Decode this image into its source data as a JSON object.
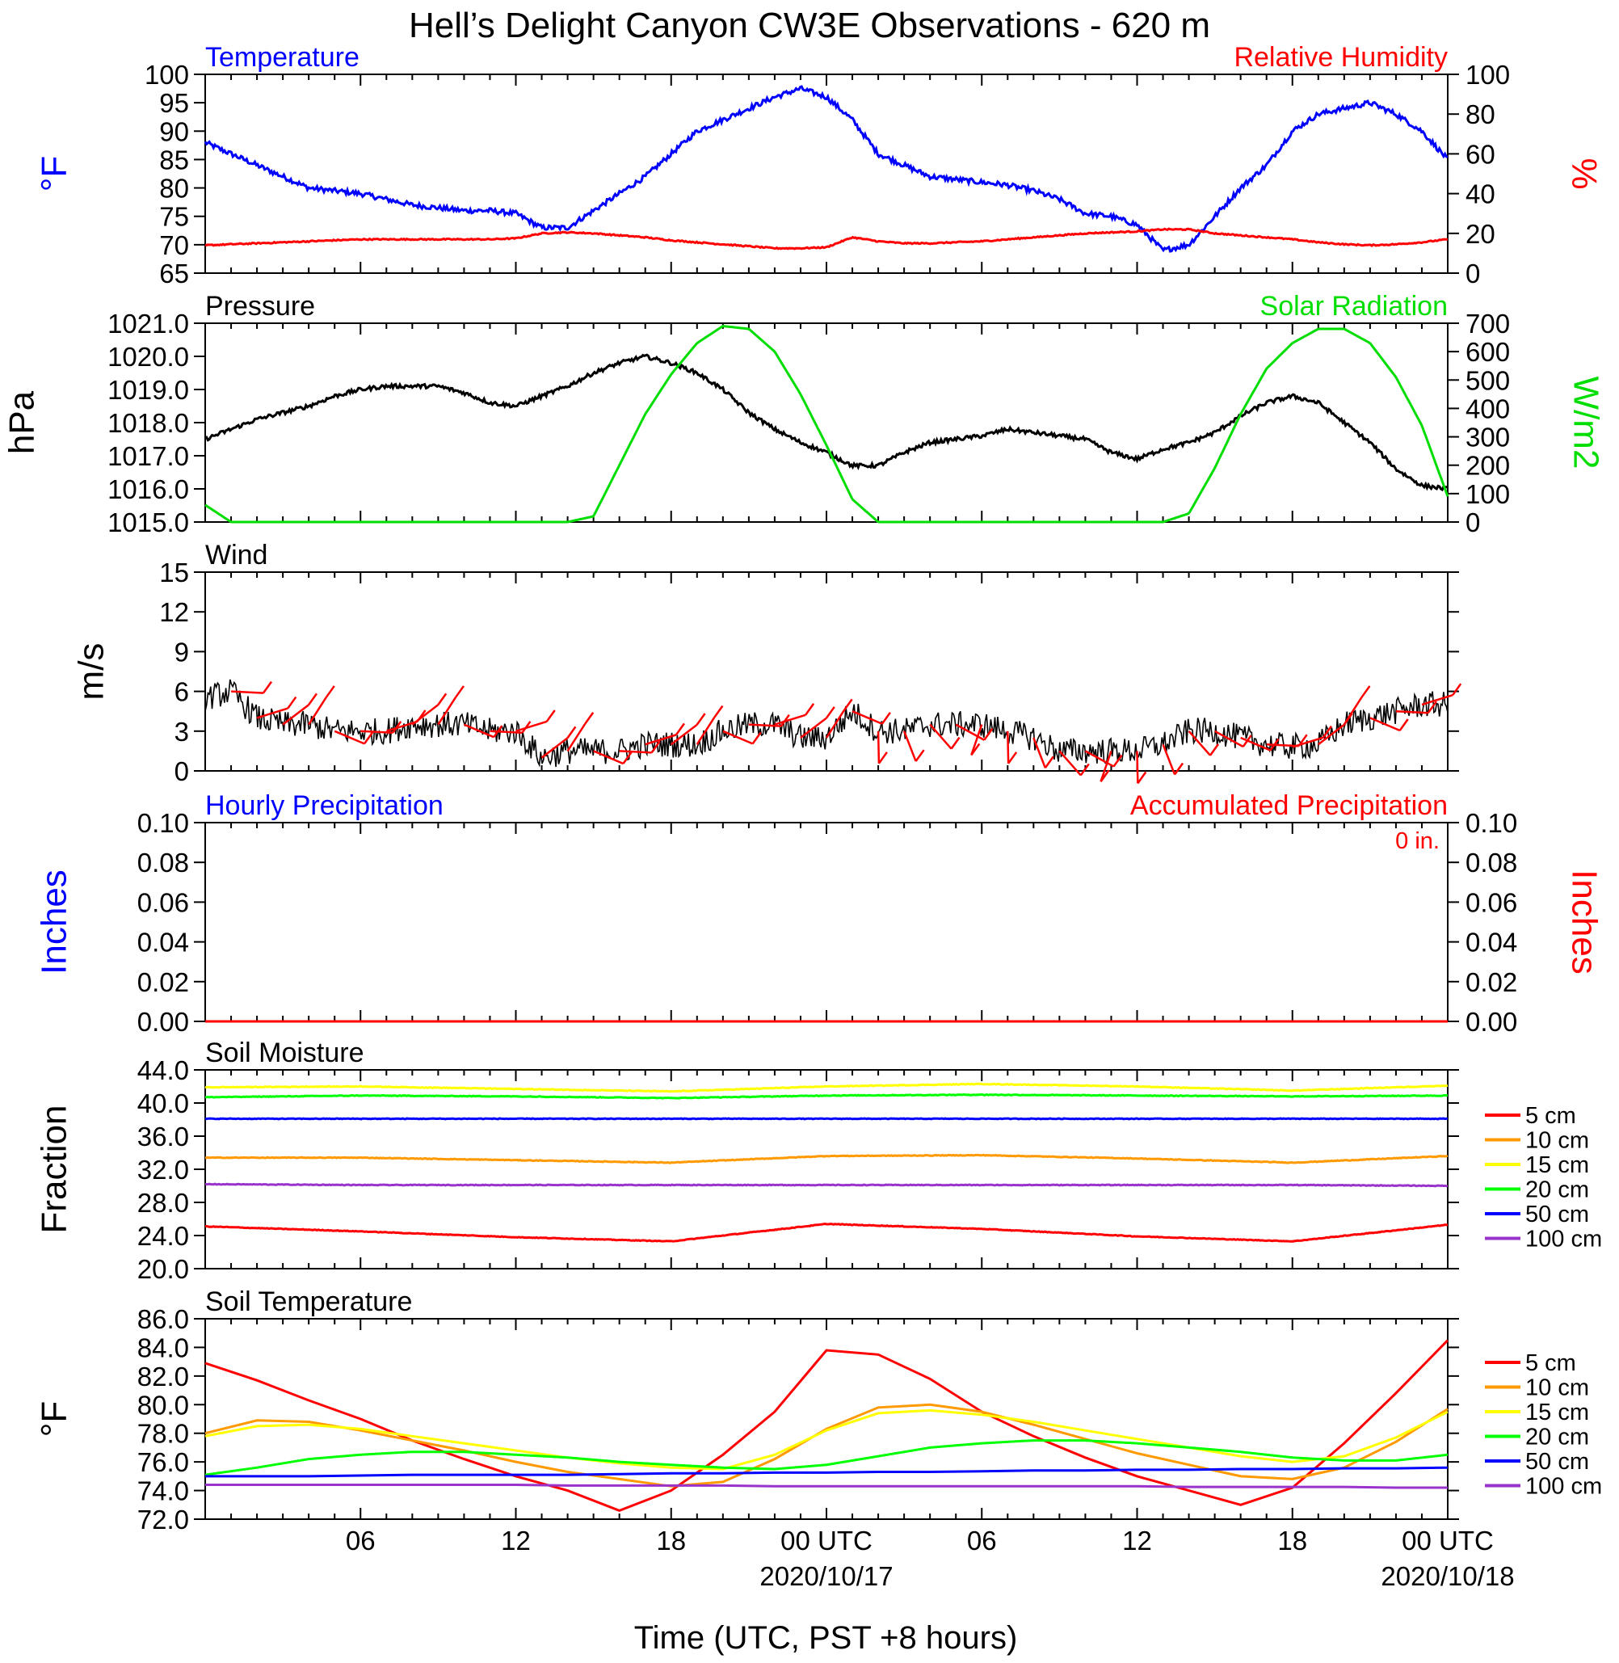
{
  "title": "Hell’s Delight Canyon CW3E Observations - 620 m",
  "xlabel": "Time (UTC, PST +8 hours)",
  "x_ticks": [
    {
      "t": 6,
      "label": "06",
      "date": ""
    },
    {
      "t": 12,
      "label": "12",
      "date": ""
    },
    {
      "t": 18,
      "label": "18",
      "date": ""
    },
    {
      "t": 24,
      "label": "00 UTC",
      "date": "2020/10/17"
    },
    {
      "t": 30,
      "label": "06",
      "date": ""
    },
    {
      "t": 36,
      "label": "12",
      "date": ""
    },
    {
      "t": 42,
      "label": "18",
      "date": ""
    },
    {
      "t": 48,
      "label": "00 UTC",
      "date": "2020/10/18"
    }
  ],
  "chart_data": [
    {
      "type": "line",
      "title_left": "Temperature",
      "title_right": "Relative Humidity",
      "ylabel_left": "°F",
      "ylabel_right": "%",
      "ylim_left": [
        65,
        100
      ],
      "ylim_right": [
        0,
        100
      ],
      "yticks_left": [
        "65",
        "70",
        "75",
        "80",
        "85",
        "90",
        "95",
        "100"
      ],
      "yticks_right": [
        "0",
        "20",
        "40",
        "60",
        "80",
        "100"
      ],
      "colors": {
        "left": "#0000ff",
        "right": "#ff0000"
      },
      "x_hours": [
        0,
        1,
        2,
        3,
        4,
        5,
        6,
        7,
        8,
        9,
        10,
        11,
        12,
        13,
        14,
        15,
        16,
        17,
        18,
        19,
        20,
        21,
        22,
        23,
        24,
        25,
        26,
        27,
        28,
        29,
        30,
        31,
        32,
        33,
        34,
        35,
        36,
        37,
        38,
        39,
        40,
        41,
        42,
        43,
        44,
        45,
        46,
        47,
        48
      ],
      "series": [
        {
          "axis": "left",
          "values": [
            88,
            86,
            84,
            82,
            80,
            79.5,
            79,
            78,
            77,
            76.5,
            76,
            76,
            75.5,
            73,
            73,
            76,
            79,
            82,
            86,
            90,
            92,
            94,
            96,
            97.5,
            96,
            92,
            86,
            84,
            82,
            81.5,
            81,
            80.5,
            79.5,
            78,
            75.5,
            75,
            73.5,
            69,
            70,
            75,
            80,
            84,
            90,
            93,
            94,
            95,
            93,
            90,
            85
          ]
        },
        {
          "axis": "right",
          "values": [
            14,
            14.5,
            15,
            15.5,
            16,
            16.5,
            17,
            17,
            17,
            17,
            17,
            17,
            17.5,
            20,
            20.5,
            20,
            19,
            18,
            16.5,
            15.5,
            14.5,
            13.5,
            12.5,
            12.5,
            13,
            18,
            16,
            15,
            15,
            15.5,
            16,
            17,
            18,
            19,
            20,
            20.5,
            21,
            22,
            22,
            20,
            19,
            18,
            17,
            15.5,
            14.5,
            14,
            14.5,
            15.5,
            17
          ]
        }
      ]
    },
    {
      "type": "line",
      "title_left": "Pressure",
      "title_right": "Solar Radiation",
      "ylabel_left": "hPa",
      "ylabel_right": "W/m2",
      "ylim_left": [
        1015,
        1021
      ],
      "ylim_right": [
        0,
        700
      ],
      "yticks_left": [
        "1015.0",
        "1016.0",
        "1017.0",
        "1018.0",
        "1019.0",
        "1020.0",
        "1021.0"
      ],
      "yticks_right": [
        "0",
        "100",
        "200",
        "300",
        "400",
        "500",
        "600",
        "700"
      ],
      "colors": {
        "left": "#000000",
        "right": "#00dd00"
      },
      "x_hours": [
        0,
        1,
        2,
        3,
        4,
        5,
        6,
        7,
        8,
        9,
        10,
        11,
        12,
        13,
        14,
        15,
        16,
        17,
        18,
        19,
        20,
        21,
        22,
        23,
        24,
        25,
        26,
        27,
        28,
        29,
        30,
        31,
        32,
        33,
        34,
        35,
        36,
        37,
        38,
        39,
        40,
        41,
        42,
        43,
        44,
        45,
        46,
        47,
        48
      ],
      "series": [
        {
          "axis": "left",
          "values": [
            1017.5,
            1017.8,
            1018.1,
            1018.3,
            1018.5,
            1018.8,
            1019.0,
            1019.1,
            1019.1,
            1019.1,
            1018.9,
            1018.6,
            1018.5,
            1018.8,
            1019.1,
            1019.5,
            1019.8,
            1020.0,
            1019.8,
            1019.5,
            1019.0,
            1018.3,
            1017.8,
            1017.4,
            1017.1,
            1016.7,
            1016.7,
            1017.1,
            1017.4,
            1017.5,
            1017.6,
            1017.8,
            1017.7,
            1017.6,
            1017.5,
            1017.1,
            1016.9,
            1017.2,
            1017.4,
            1017.7,
            1018.2,
            1018.6,
            1018.8,
            1018.6,
            1018.0,
            1017.4,
            1016.6,
            1016.1,
            1016.0
          ]
        },
        {
          "axis": "right",
          "values": [
            60,
            0,
            0,
            0,
            0,
            0,
            0,
            0,
            0,
            0,
            0,
            0,
            0,
            0,
            0,
            20,
            200,
            380,
            520,
            630,
            690,
            680,
            600,
            450,
            270,
            80,
            0,
            0,
            0,
            0,
            0,
            0,
            0,
            0,
            0,
            0,
            0,
            0,
            30,
            190,
            380,
            540,
            630,
            680,
            680,
            630,
            510,
            340,
            90
          ]
        }
      ]
    },
    {
      "type": "line",
      "title_left": "Wind",
      "ylabel_left": "m/s",
      "ylim_left": [
        0,
        15
      ],
      "yticks_left": [
        "0",
        "3",
        "6",
        "9",
        "12",
        "15"
      ],
      "colors": {
        "left": "#000000",
        "barbs": "#ff0000"
      },
      "x_hours": [
        0,
        1,
        2,
        3,
        4,
        5,
        6,
        7,
        8,
        9,
        10,
        11,
        12,
        13,
        14,
        15,
        16,
        17,
        18,
        19,
        20,
        21,
        22,
        23,
        24,
        25,
        26,
        27,
        28,
        29,
        30,
        31,
        32,
        33,
        34,
        35,
        36,
        37,
        38,
        39,
        40,
        41,
        42,
        43,
        44,
        45,
        46,
        47,
        48
      ],
      "series": [
        {
          "axis": "left",
          "values": [
            5.5,
            6,
            4,
            3.5,
            3.5,
            3,
            3,
            3,
            3.5,
            3.5,
            3.5,
            3,
            3,
            1,
            1.5,
            1.5,
            1.5,
            2,
            2,
            2,
            3,
            3.5,
            3.5,
            2.5,
            2.5,
            4.5,
            3,
            3,
            3.5,
            3.5,
            3.5,
            3,
            2.5,
            1.5,
            1.5,
            1.5,
            1.5,
            2,
            3,
            3,
            2.5,
            2,
            1.8,
            2,
            3.5,
            4,
            4.5,
            5,
            5
          ]
        }
      ]
    },
    {
      "type": "line",
      "title_left": "Hourly Precipitation",
      "title_right": "Accumulated Precipitation",
      "annotation": "0 in.",
      "ylabel_left": "Inches",
      "ylabel_right": "Inches",
      "ylim_left": [
        0,
        0.1
      ],
      "ylim_right": [
        0,
        0.1
      ],
      "yticks_left": [
        "0.00",
        "0.02",
        "0.04",
        "0.06",
        "0.08",
        "0.10"
      ],
      "yticks_right": [
        "0.00",
        "0.02",
        "0.04",
        "0.06",
        "0.08",
        "0.10"
      ],
      "colors": {
        "left": "#0000ff",
        "right": "#ff0000"
      },
      "x_hours": [
        0,
        48
      ],
      "series": [
        {
          "axis": "left",
          "values": [
            0,
            0
          ]
        },
        {
          "axis": "right",
          "values": [
            0,
            0
          ]
        }
      ]
    },
    {
      "type": "line",
      "title_left": "Soil Moisture",
      "ylabel_left": "Fraction",
      "ylim_left": [
        20,
        44
      ],
      "yticks_left": [
        "20.0",
        "24.0",
        "28.0",
        "32.0",
        "36.0",
        "40.0",
        "44.0"
      ],
      "x_hours": [
        0,
        6,
        12,
        18,
        24,
        30,
        36,
        42,
        48
      ],
      "series": [
        {
          "name": "5 cm",
          "color": "#ff0000",
          "values": [
            25.1,
            24.5,
            23.8,
            23.3,
            25.4,
            24.8,
            23.9,
            23.3,
            25.3
          ]
        },
        {
          "name": "10 cm",
          "color": "#ff9900",
          "values": [
            33.4,
            33.4,
            33.1,
            32.8,
            33.6,
            33.7,
            33.3,
            32.8,
            33.6
          ]
        },
        {
          "name": "15 cm",
          "color": "#ffff00",
          "values": [
            41.9,
            42.0,
            41.7,
            41.4,
            42.0,
            42.3,
            42.0,
            41.5,
            42.1
          ]
        },
        {
          "name": "20 cm",
          "color": "#00ff00",
          "values": [
            40.7,
            40.9,
            40.8,
            40.6,
            40.9,
            41.0,
            40.9,
            40.8,
            40.9
          ]
        },
        {
          "name": "50 cm",
          "color": "#0000ff",
          "values": [
            38.1,
            38.1,
            38.1,
            38.1,
            38.1,
            38.1,
            38.1,
            38.1,
            38.1
          ]
        },
        {
          "name": "100 cm",
          "color": "#9933cc",
          "values": [
            30.2,
            30.1,
            30.1,
            30.1,
            30.1,
            30.1,
            30.1,
            30.1,
            30.0
          ]
        }
      ]
    },
    {
      "type": "line",
      "title_left": "Soil Temperature",
      "ylabel_left": "°F",
      "ylim_left": [
        72,
        86
      ],
      "yticks_left": [
        "72.0",
        "74.0",
        "76.0",
        "78.0",
        "80.0",
        "82.0",
        "84.0",
        "86.0"
      ],
      "x_hours": [
        0,
        2,
        4,
        6,
        8,
        10,
        12,
        14,
        16,
        18,
        20,
        22,
        24,
        26,
        28,
        30,
        32,
        34,
        36,
        38,
        40,
        42,
        44,
        46,
        48
      ],
      "series": [
        {
          "name": "5 cm",
          "color": "#ff0000",
          "values": [
            82.9,
            81.7,
            80.3,
            79.0,
            77.5,
            76.2,
            75.0,
            74.0,
            72.6,
            74.0,
            76.5,
            79.5,
            83.8,
            83.5,
            81.8,
            79.5,
            77.8,
            76.3,
            75.0,
            74.0,
            73.0,
            74.2,
            77.3,
            80.8,
            84.5
          ]
        },
        {
          "name": "10 cm",
          "color": "#ff9900",
          "values": [
            78.0,
            78.9,
            78.8,
            78.2,
            77.5,
            76.8,
            76.0,
            75.3,
            74.8,
            74.3,
            74.6,
            76.2,
            78.3,
            79.8,
            80.0,
            79.5,
            78.6,
            77.6,
            76.6,
            75.8,
            75.0,
            74.8,
            75.6,
            77.4,
            79.7
          ]
        },
        {
          "name": "15 cm",
          "color": "#ffff00",
          "values": [
            77.8,
            78.5,
            78.6,
            78.3,
            77.8,
            77.3,
            76.8,
            76.3,
            75.9,
            75.6,
            75.5,
            76.5,
            78.2,
            79.4,
            79.6,
            79.3,
            78.8,
            78.2,
            77.6,
            77.0,
            76.4,
            76.0,
            76.4,
            77.7,
            79.5
          ]
        },
        {
          "name": "20 cm",
          "color": "#00ff00",
          "values": [
            75.1,
            75.6,
            76.2,
            76.5,
            76.7,
            76.7,
            76.5,
            76.3,
            76.0,
            75.8,
            75.6,
            75.5,
            75.8,
            76.4,
            77.0,
            77.3,
            77.5,
            77.5,
            77.3,
            77.0,
            76.7,
            76.3,
            76.1,
            76.1,
            76.5
          ]
        },
        {
          "name": "50 cm",
          "color": "#0000ff",
          "values": [
            75.0,
            75.0,
            75.0,
            75.05,
            75.1,
            75.1,
            75.1,
            75.1,
            75.15,
            75.2,
            75.2,
            75.25,
            75.25,
            75.3,
            75.3,
            75.35,
            75.4,
            75.4,
            75.45,
            75.45,
            75.5,
            75.5,
            75.55,
            75.55,
            75.6
          ]
        },
        {
          "name": "100 cm",
          "color": "#9933cc",
          "values": [
            74.4,
            74.4,
            74.4,
            74.4,
            74.4,
            74.4,
            74.4,
            74.35,
            74.35,
            74.35,
            74.35,
            74.3,
            74.3,
            74.3,
            74.3,
            74.3,
            74.3,
            74.3,
            74.3,
            74.25,
            74.25,
            74.25,
            74.25,
            74.2,
            74.2
          ]
        }
      ]
    }
  ]
}
